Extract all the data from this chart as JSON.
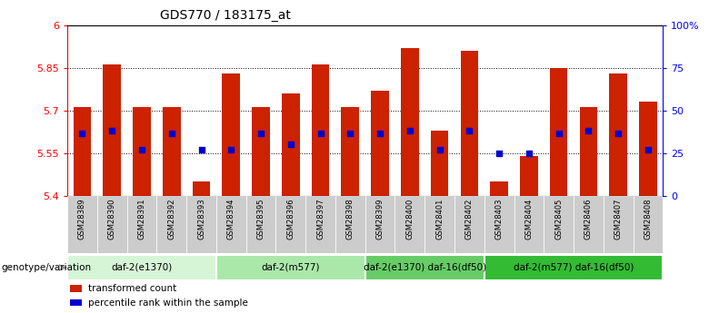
{
  "title": "GDS770 / 183175_at",
  "samples": [
    "GSM28389",
    "GSM28390",
    "GSM28391",
    "GSM28392",
    "GSM28393",
    "GSM28394",
    "GSM28395",
    "GSM28396",
    "GSM28397",
    "GSM28398",
    "GSM28399",
    "GSM28400",
    "GSM28401",
    "GSM28402",
    "GSM28403",
    "GSM28404",
    "GSM28405",
    "GSM28406",
    "GSM28407",
    "GSM28408"
  ],
  "bar_heights": [
    5.71,
    5.86,
    5.71,
    5.71,
    5.45,
    5.83,
    5.71,
    5.76,
    5.86,
    5.71,
    5.77,
    5.92,
    5.63,
    5.91,
    5.45,
    5.54,
    5.85,
    5.71,
    5.83,
    5.73
  ],
  "blue_dot_y": [
    5.62,
    5.63,
    5.56,
    5.62,
    5.56,
    5.56,
    5.62,
    5.58,
    5.62,
    5.62,
    5.62,
    5.63,
    5.56,
    5.63,
    5.55,
    5.55,
    5.62,
    5.63,
    5.62,
    5.56
  ],
  "ymin": 5.4,
  "ymax": 6.0,
  "yticks_left": [
    5.4,
    5.55,
    5.7,
    5.85,
    6.0
  ],
  "yticks_right": [
    0,
    25,
    50,
    75,
    100
  ],
  "ytick_labels_left": [
    "5.4",
    "5.55",
    "5.7",
    "5.85",
    "6"
  ],
  "ytick_labels_right": [
    "0",
    "25",
    "50",
    "75",
    "100%"
  ],
  "bar_color": "#cc2200",
  "dot_color": "#0000cc",
  "bar_width": 0.6,
  "groups": [
    {
      "label": "daf-2(e1370)",
      "start": 0,
      "end": 5,
      "color": "#d6f5d6"
    },
    {
      "label": "daf-2(m577)",
      "start": 5,
      "end": 10,
      "color": "#aae8aa"
    },
    {
      "label": "daf-2(e1370) daf-16(df50)",
      "start": 10,
      "end": 14,
      "color": "#66cc66"
    },
    {
      "label": "daf-2(m577) daf-16(df50)",
      "start": 14,
      "end": 20,
      "color": "#33bb33"
    }
  ],
  "genotype_label": "genotype/variation",
  "legend_items": [
    {
      "label": "transformed count",
      "color": "#cc2200"
    },
    {
      "label": "percentile rank within the sample",
      "color": "#0000cc"
    }
  ],
  "xtick_bg_color": "#cccccc",
  "grid_yticks": [
    5.55,
    5.7,
    5.85
  ]
}
